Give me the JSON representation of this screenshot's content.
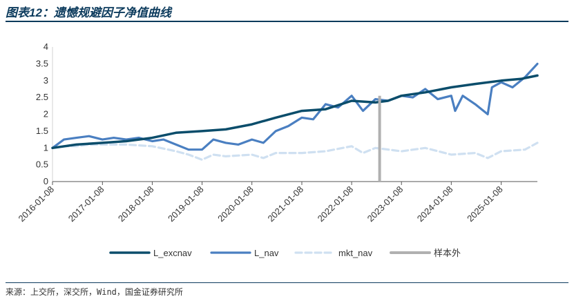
{
  "header": {
    "title": "图表12：遗憾规避因子净值曲线"
  },
  "footer": {
    "source": "来源：上交所，深交所，Wind，国金证券研究所"
  },
  "colors": {
    "title": "#0b3a5c",
    "L_excnav": "#0b4d6b",
    "L_nav": "#4a7fc1",
    "mkt_nav": "#cfe0f1",
    "oos": "#b0b0b0"
  },
  "chart_data": {
    "type": "line",
    "title": "",
    "xlabel": "",
    "ylabel": "",
    "ylim": [
      0,
      4
    ],
    "yticks": [
      "0",
      "0.5",
      "1",
      "1.5",
      "2",
      "2.5",
      "3",
      "3.5",
      "4"
    ],
    "xticks": [
      "2016-01-08",
      "2017-01-08",
      "2018-01-08",
      "2019-01-08",
      "2020-01-08",
      "2021-01-08",
      "2022-01-08",
      "2023-01-08",
      "2024-01-08",
      "2025-01-08"
    ],
    "x_range": [
      "2016-01-08",
      "2025-09-30"
    ],
    "out_of_sample_start": "2022-08-01",
    "legend": [
      "L_excnav",
      "L_nav",
      "mkt_nav",
      "样本外"
    ],
    "legend_position": "bottom",
    "grid": false,
    "series": [
      {
        "name": "L_excnav",
        "style": "solid",
        "points": [
          [
            "2016-01-08",
            1.0
          ],
          [
            "2016-07-01",
            1.1
          ],
          [
            "2017-01-08",
            1.15
          ],
          [
            "2017-07-01",
            1.2
          ],
          [
            "2018-01-08",
            1.3
          ],
          [
            "2018-07-01",
            1.45
          ],
          [
            "2019-01-08",
            1.5
          ],
          [
            "2019-07-01",
            1.55
          ],
          [
            "2020-01-08",
            1.7
          ],
          [
            "2020-07-01",
            1.9
          ],
          [
            "2021-01-08",
            2.1
          ],
          [
            "2021-07-01",
            2.15
          ],
          [
            "2022-01-08",
            2.4
          ],
          [
            "2022-07-01",
            2.35
          ],
          [
            "2022-10-01",
            2.4
          ],
          [
            "2023-01-08",
            2.55
          ],
          [
            "2023-07-01",
            2.65
          ],
          [
            "2024-01-08",
            2.8
          ],
          [
            "2024-07-01",
            2.9
          ],
          [
            "2025-01-08",
            3.0
          ],
          [
            "2025-06-01",
            3.05
          ],
          [
            "2025-09-30",
            3.15
          ]
        ]
      },
      {
        "name": "L_nav",
        "style": "solid",
        "points": [
          [
            "2016-01-08",
            1.0
          ],
          [
            "2016-04-01",
            1.25
          ],
          [
            "2016-07-01",
            1.3
          ],
          [
            "2016-10-01",
            1.35
          ],
          [
            "2017-01-08",
            1.25
          ],
          [
            "2017-04-01",
            1.3
          ],
          [
            "2017-07-01",
            1.25
          ],
          [
            "2017-10-01",
            1.3
          ],
          [
            "2018-01-08",
            1.2
          ],
          [
            "2018-04-01",
            1.25
          ],
          [
            "2018-07-01",
            1.1
          ],
          [
            "2018-10-01",
            0.95
          ],
          [
            "2019-01-08",
            0.95
          ],
          [
            "2019-04-01",
            1.25
          ],
          [
            "2019-07-01",
            1.15
          ],
          [
            "2019-10-01",
            1.1
          ],
          [
            "2020-01-08",
            1.25
          ],
          [
            "2020-04-01",
            1.15
          ],
          [
            "2020-07-01",
            1.5
          ],
          [
            "2020-10-01",
            1.65
          ],
          [
            "2021-01-08",
            1.9
          ],
          [
            "2021-04-01",
            1.85
          ],
          [
            "2021-07-01",
            2.3
          ],
          [
            "2021-10-01",
            2.2
          ],
          [
            "2022-01-08",
            2.55
          ],
          [
            "2022-04-01",
            2.1
          ],
          [
            "2022-07-01",
            2.45
          ],
          [
            "2022-10-01",
            2.4
          ],
          [
            "2023-01-08",
            2.55
          ],
          [
            "2023-04-01",
            2.5
          ],
          [
            "2023-07-01",
            2.75
          ],
          [
            "2023-10-01",
            2.45
          ],
          [
            "2024-01-08",
            2.55
          ],
          [
            "2024-02-05",
            2.1
          ],
          [
            "2024-04-01",
            2.55
          ],
          [
            "2024-07-01",
            2.3
          ],
          [
            "2024-10-01",
            2.0
          ],
          [
            "2024-11-01",
            2.8
          ],
          [
            "2025-01-08",
            2.95
          ],
          [
            "2025-04-01",
            2.8
          ],
          [
            "2025-07-01",
            3.1
          ],
          [
            "2025-09-30",
            3.5
          ]
        ]
      },
      {
        "name": "mkt_nav",
        "style": "dashed",
        "points": [
          [
            "2016-01-08",
            1.0
          ],
          [
            "2016-04-01",
            1.05
          ],
          [
            "2016-07-01",
            1.05
          ],
          [
            "2016-10-01",
            1.1
          ],
          [
            "2017-01-08",
            1.1
          ],
          [
            "2017-07-01",
            1.1
          ],
          [
            "2018-01-08",
            1.05
          ],
          [
            "2018-07-01",
            0.9
          ],
          [
            "2018-10-01",
            0.8
          ],
          [
            "2019-01-08",
            0.65
          ],
          [
            "2019-04-01",
            0.8
          ],
          [
            "2019-07-01",
            0.75
          ],
          [
            "2020-01-08",
            0.8
          ],
          [
            "2020-04-01",
            0.7
          ],
          [
            "2020-07-01",
            0.85
          ],
          [
            "2021-01-08",
            0.85
          ],
          [
            "2021-07-01",
            0.9
          ],
          [
            "2022-01-08",
            1.05
          ],
          [
            "2022-04-01",
            0.85
          ],
          [
            "2022-07-01",
            1.0
          ],
          [
            "2023-01-08",
            0.9
          ],
          [
            "2023-07-01",
            1.0
          ],
          [
            "2024-01-08",
            0.8
          ],
          [
            "2024-07-01",
            0.85
          ],
          [
            "2024-10-01",
            0.7
          ],
          [
            "2025-01-08",
            0.9
          ],
          [
            "2025-07-01",
            0.95
          ],
          [
            "2025-09-30",
            1.15
          ]
        ]
      }
    ]
  }
}
